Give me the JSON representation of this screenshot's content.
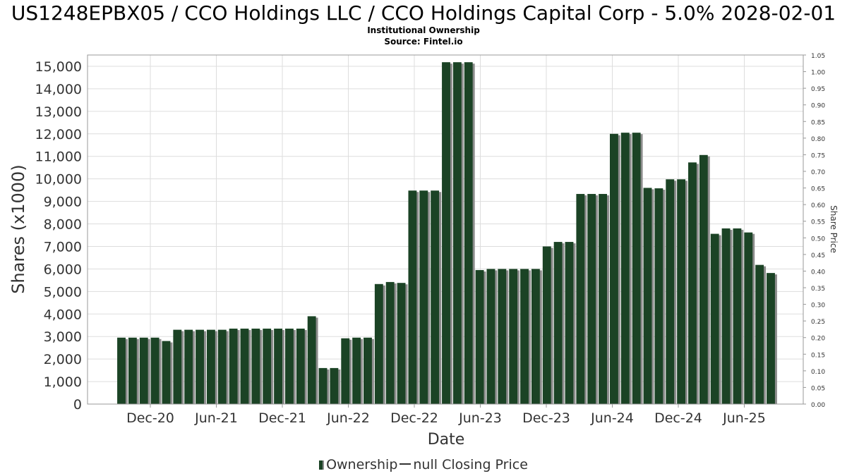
{
  "title": "US1248EPBX05 / CCO Holdings LLC / CCO Holdings Capital Corp - 5.0% 2028-02-01",
  "subtitle1": "Institutional Ownership",
  "subtitle2": "Source: Fintel.io",
  "legend": {
    "ownership": "Ownership",
    "price": "null Closing Price"
  },
  "colors": {
    "bar": "#1b4325",
    "bar_shadow": "#8c8c8c",
    "grid": "#dddddd"
  },
  "chart_data": {
    "type": "bar",
    "xlabel": "Date",
    "ylabel": "Shares (x1000)",
    "y2label": "Share Price",
    "ylim": [
      0,
      15500
    ],
    "y2lim": [
      0,
      1.05
    ],
    "yticks": [
      0,
      1000,
      2000,
      3000,
      4000,
      5000,
      6000,
      7000,
      8000,
      9000,
      10000,
      11000,
      12000,
      13000,
      14000,
      15000
    ],
    "ytick_labels": [
      "0",
      "1,000",
      "2,000",
      "3,000",
      "4,000",
      "5,000",
      "6,000",
      "7,000",
      "8,000",
      "9,000",
      "10,000",
      "11,000",
      "12,000",
      "13,000",
      "14,000",
      "15,000"
    ],
    "y2ticks": [
      "0.00",
      "0.05",
      "0.10",
      "0.15",
      "0.20",
      "0.25",
      "0.30",
      "0.35",
      "0.40",
      "0.45",
      "0.50",
      "0.55",
      "0.60",
      "0.65",
      "0.70",
      "0.75",
      "0.80",
      "0.85",
      "0.90",
      "0.95",
      "1.00",
      "1.05"
    ],
    "x_tick_labels": [
      "Dec-20",
      "Jun-21",
      "Dec-21",
      "Jun-22",
      "Dec-22",
      "Jun-23",
      "Dec-23",
      "Jun-24",
      "Dec-24",
      "Jun-25"
    ],
    "grid": true,
    "legend_position": "bottom",
    "series": [
      {
        "name": "Ownership",
        "values": [
          2950,
          2950,
          2950,
          2950,
          2800,
          3300,
          3300,
          3300,
          3300,
          3300,
          3350,
          3350,
          3350,
          3350,
          3350,
          3350,
          3350,
          3900,
          1600,
          1600,
          2920,
          2950,
          2950,
          5330,
          5420,
          5380,
          9480,
          9480,
          9480,
          15180,
          15180,
          15180,
          5950,
          6000,
          6000,
          6000,
          6000,
          6000,
          7000,
          7200,
          7200,
          9330,
          9330,
          9330,
          12000,
          12050,
          12050,
          9600,
          9580,
          9980,
          9980,
          10730,
          11060,
          7560,
          7800,
          7800,
          7620,
          6180,
          5820
        ]
      }
    ]
  }
}
